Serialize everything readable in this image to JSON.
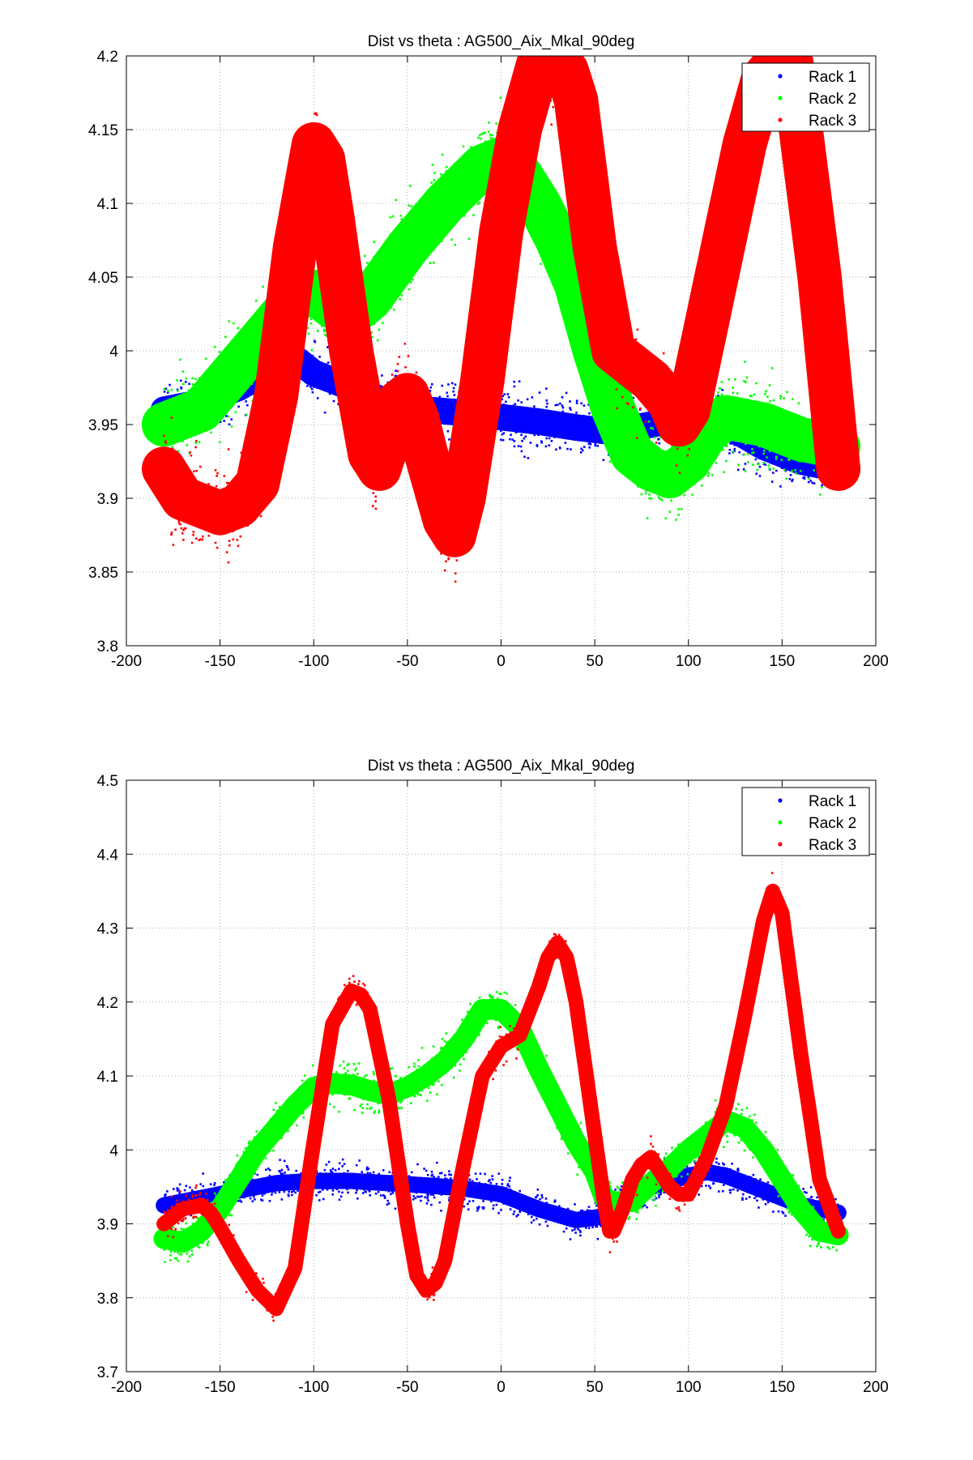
{
  "chart_data": [
    {
      "type": "scatter",
      "title": "Dist vs theta : AG500_Aix_Mkal_90deg",
      "xlabel": "",
      "ylabel": "",
      "xlim": [
        -200,
        200
      ],
      "ylim": [
        3.8,
        4.2
      ],
      "xticks": [
        -200,
        -150,
        -100,
        -50,
        0,
        50,
        100,
        150,
        200
      ],
      "yticks": [
        3.8,
        3.85,
        3.9,
        3.95,
        4,
        4.05,
        4.1,
        4.15,
        4.2
      ],
      "xtick_labels": [
        "-200",
        "-150",
        "-100",
        "-50",
        "0",
        "50",
        "100",
        "150",
        "200"
      ],
      "ytick_labels": [
        "3.8",
        "3.85",
        "3.9",
        "3.95",
        "4",
        "4.05",
        "4.1",
        "4.15",
        "4.2"
      ],
      "grid": true,
      "legend_position": "top-right",
      "series": [
        {
          "name": "Rack 1",
          "color": "#0000ff",
          "spread": 0.018,
          "x": [
            -180,
            -160,
            -140,
            -120,
            -110,
            -100,
            -80,
            -60,
            -40,
            -20,
            0,
            20,
            40,
            60,
            80,
            100,
            120,
            140,
            160,
            180
          ],
          "y": [
            3.96,
            3.965,
            3.975,
            3.99,
            3.995,
            3.985,
            3.975,
            3.965,
            3.96,
            3.958,
            3.955,
            3.952,
            3.948,
            3.945,
            3.95,
            3.955,
            3.95,
            3.935,
            3.925,
            3.92
          ]
        },
        {
          "name": "Rack 2",
          "color": "#00ff00",
          "spread": 0.03,
          "x": [
            -180,
            -160,
            -140,
            -120,
            -110,
            -100,
            -90,
            -80,
            -70,
            -50,
            -30,
            -10,
            0,
            10,
            20,
            30,
            40,
            50,
            60,
            70,
            80,
            90,
            100,
            110,
            120,
            140,
            160,
            180
          ],
          "y": [
            3.95,
            3.96,
            3.99,
            4.02,
            4.035,
            4.04,
            4.03,
            4.025,
            4.035,
            4.07,
            4.1,
            4.125,
            4.13,
            4.12,
            4.1,
            4.075,
            4.045,
            4.0,
            3.96,
            3.93,
            3.92,
            3.915,
            3.925,
            3.945,
            3.955,
            3.95,
            3.94,
            3.935
          ]
        },
        {
          "name": "Rack 3",
          "color": "#ff0000",
          "spread": 0.03,
          "x": [
            -180,
            -170,
            -160,
            -150,
            -140,
            -130,
            -120,
            -110,
            -100,
            -95,
            -90,
            -80,
            -70,
            -65,
            -60,
            -55,
            -50,
            -45,
            -40,
            -30,
            -25,
            -20,
            -10,
            0,
            10,
            20,
            25,
            30,
            35,
            40,
            50,
            60,
            70,
            80,
            90,
            95,
            100,
            110,
            120,
            130,
            140,
            150,
            155,
            160,
            170,
            180
          ],
          "y": [
            3.92,
            3.9,
            3.895,
            3.89,
            3.895,
            3.91,
            3.97,
            4.07,
            4.14,
            4.13,
            4.09,
            4.0,
            3.93,
            3.92,
            3.94,
            3.965,
            3.97,
            3.955,
            3.93,
            3.885,
            3.875,
            3.9,
            3.98,
            4.08,
            4.15,
            4.195,
            4.2,
            4.198,
            4.19,
            4.17,
            4.07,
            4.0,
            3.99,
            3.98,
            3.965,
            3.95,
            3.96,
            4.02,
            4.08,
            4.14,
            4.185,
            4.2,
            4.195,
            4.15,
            4.05,
            3.92
          ]
        }
      ]
    },
    {
      "type": "scatter",
      "title": "Dist vs theta : AG500_Aix_Mkal_90deg",
      "xlabel": "",
      "ylabel": "",
      "xlim": [
        -200,
        200
      ],
      "ylim": [
        3.7,
        4.5
      ],
      "xticks": [
        -200,
        -150,
        -100,
        -50,
        0,
        50,
        100,
        150,
        200
      ],
      "yticks": [
        3.7,
        3.8,
        3.9,
        4.0,
        4.1,
        4.2,
        4.3,
        4.4,
        4.5
      ],
      "xtick_labels": [
        "-200",
        "-150",
        "-100",
        "-50",
        "0",
        "50",
        "100",
        "150",
        "200"
      ],
      "ytick_labels": [
        "3.7",
        "3.8",
        "3.9",
        "4",
        "4.1",
        "4.2",
        "4.3",
        "4.4",
        "4.5"
      ],
      "grid": true,
      "legend_position": "top-right",
      "series": [
        {
          "name": "Rack 1",
          "color": "#0000ff",
          "spread": 0.022,
          "x": [
            -180,
            -160,
            -140,
            -120,
            -100,
            -80,
            -60,
            -40,
            -20,
            0,
            20,
            40,
            55,
            60,
            80,
            100,
            110,
            120,
            140,
            160,
            180
          ],
          "y": [
            3.925,
            3.935,
            3.945,
            3.955,
            3.958,
            3.958,
            3.955,
            3.952,
            3.948,
            3.94,
            3.92,
            3.905,
            3.91,
            3.925,
            3.95,
            3.965,
            3.97,
            3.965,
            3.945,
            3.925,
            3.915
          ]
        },
        {
          "name": "Rack 2",
          "color": "#00ff00",
          "spread": 0.028,
          "x": [
            -180,
            -170,
            -160,
            -150,
            -140,
            -130,
            -120,
            -110,
            -100,
            -90,
            -80,
            -70,
            -60,
            -50,
            -40,
            -30,
            -20,
            -10,
            0,
            10,
            20,
            30,
            40,
            50,
            55,
            60,
            70,
            80,
            90,
            100,
            110,
            120,
            130,
            140,
            150,
            160,
            170,
            180
          ],
          "y": [
            3.88,
            3.875,
            3.89,
            3.92,
            3.96,
            4.0,
            4.03,
            4.06,
            4.085,
            4.09,
            4.088,
            4.08,
            4.075,
            4.085,
            4.1,
            4.12,
            4.15,
            4.19,
            4.19,
            4.165,
            4.11,
            4.06,
            4.01,
            3.97,
            3.935,
            3.93,
            3.93,
            3.955,
            3.975,
            4.0,
            4.02,
            4.04,
            4.03,
            4.0,
            3.96,
            3.92,
            3.89,
            3.885
          ]
        },
        {
          "name": "Rack 3",
          "color": "#ff0000",
          "spread": 0.02,
          "x": [
            -180,
            -170,
            -160,
            -155,
            -150,
            -140,
            -130,
            -120,
            -110,
            -100,
            -90,
            -80,
            -75,
            -70,
            -60,
            -50,
            -45,
            -40,
            -35,
            -30,
            -20,
            -10,
            0,
            10,
            20,
            25,
            30,
            35,
            40,
            50,
            55,
            58,
            60,
            65,
            70,
            75,
            80,
            85,
            90,
            95,
            100,
            110,
            120,
            130,
            140,
            145,
            150,
            160,
            170,
            180
          ],
          "y": [
            3.9,
            3.92,
            3.925,
            3.915,
            3.895,
            3.85,
            3.81,
            3.785,
            3.84,
            4.01,
            4.17,
            4.215,
            4.21,
            4.19,
            4.07,
            3.9,
            3.83,
            3.81,
            3.82,
            3.85,
            3.98,
            4.1,
            4.14,
            4.155,
            4.22,
            4.26,
            4.28,
            4.26,
            4.2,
            4.02,
            3.93,
            3.89,
            3.89,
            3.92,
            3.96,
            3.98,
            3.99,
            3.97,
            3.95,
            3.94,
            3.94,
            3.99,
            4.06,
            4.18,
            4.31,
            4.35,
            4.32,
            4.13,
            3.96,
            3.89
          ]
        }
      ]
    }
  ]
}
